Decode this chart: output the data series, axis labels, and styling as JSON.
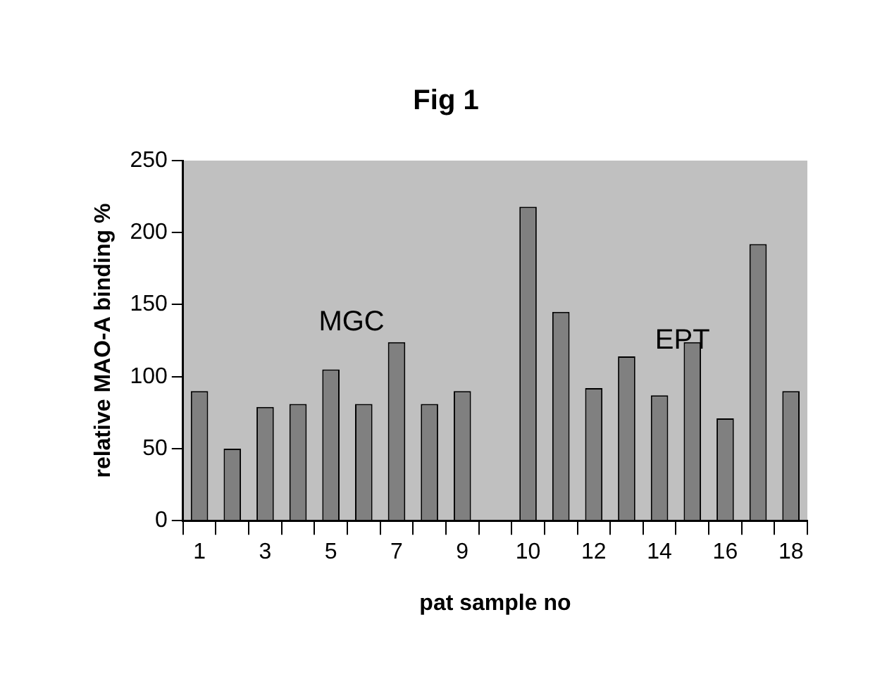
{
  "chart_data": {
    "type": "bar",
    "title": "Fig 1",
    "xlabel": "pat sample no",
    "ylabel": "relative MAO-A binding %",
    "categories": [
      "1",
      null,
      "3",
      null,
      "5",
      null,
      "7",
      null,
      "9",
      null,
      "10",
      null,
      "12",
      null,
      "14",
      null,
      "16",
      null,
      "18"
    ],
    "values": [
      90,
      50,
      79,
      81,
      105,
      81,
      124,
      81,
      90,
      null,
      218,
      145,
      92,
      114,
      87,
      124,
      71,
      192,
      90
    ],
    "color": "#808080",
    "ylim": [
      0,
      250
    ],
    "yticks": [
      0,
      50,
      100,
      150,
      200,
      250
    ],
    "grid": false,
    "legend": false,
    "annotations": [
      "MGC",
      "EPT"
    ]
  }
}
